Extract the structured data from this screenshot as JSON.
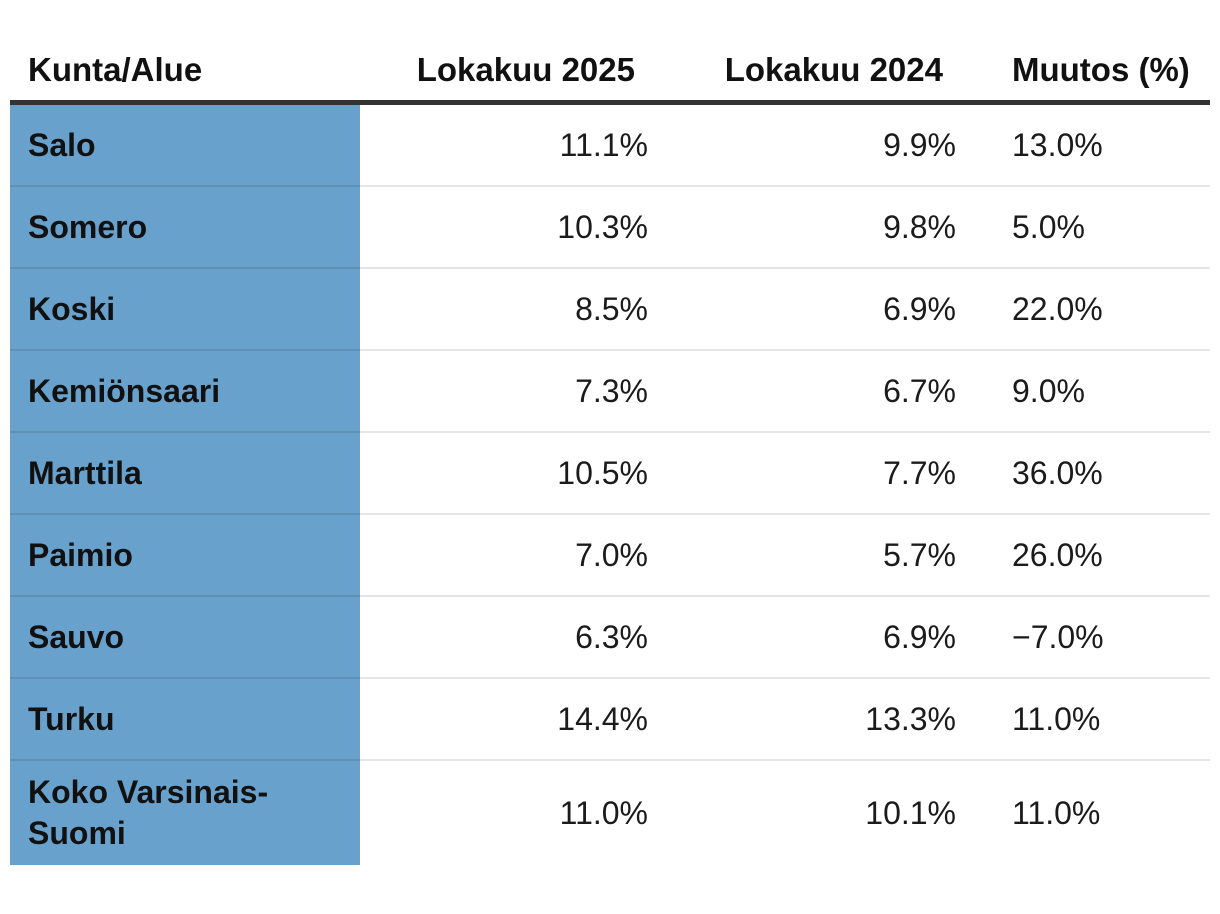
{
  "colors": {
    "row_label_bg": "#69A1CD",
    "header_border": "#333333",
    "row_separator": "#E6E6E6",
    "text": "#1b1b1b",
    "background": "#ffffff"
  },
  "table": {
    "columns": [
      {
        "id": "name",
        "label": "Kunta/Alue",
        "align": "left"
      },
      {
        "id": "oct2025",
        "label": "Lokakuu 2025",
        "align": "right"
      },
      {
        "id": "oct2024",
        "label": "Lokakuu 2024",
        "align": "right"
      },
      {
        "id": "muutos",
        "label": "Muutos (%)",
        "align": "left"
      }
    ],
    "rows": [
      {
        "name": "Salo",
        "oct2025": "11.1%",
        "oct2024": "9.9%",
        "muutos": "13.0%"
      },
      {
        "name": "Somero",
        "oct2025": "10.3%",
        "oct2024": "9.8%",
        "muutos": "5.0%"
      },
      {
        "name": "Koski",
        "oct2025": "8.5%",
        "oct2024": "6.9%",
        "muutos": "22.0%"
      },
      {
        "name": "Kemiönsaari",
        "oct2025": "7.3%",
        "oct2024": "6.7%",
        "muutos": "9.0%"
      },
      {
        "name": "Marttila",
        "oct2025": "10.5%",
        "oct2024": "7.7%",
        "muutos": "36.0%"
      },
      {
        "name": "Paimio",
        "oct2025": "7.0%",
        "oct2024": "5.7%",
        "muutos": "26.0%"
      },
      {
        "name": "Sauvo",
        "oct2025": "6.3%",
        "oct2024": "6.9%",
        "muutos": "−7.0%"
      },
      {
        "name": "Turku",
        "oct2025": "14.4%",
        "oct2024": "13.3%",
        "muutos": "11.0%"
      },
      {
        "name": "Koko Varsinais-Suomi",
        "oct2025": "11.0%",
        "oct2024": "10.1%",
        "muutos": "11.0%"
      }
    ]
  },
  "chart_data": {
    "type": "table",
    "title": "",
    "columns": [
      "Kunta/Alue",
      "Lokakuu 2025",
      "Lokakuu 2024",
      "Muutos (%)"
    ],
    "categories": [
      "Salo",
      "Somero",
      "Koski",
      "Kemiönsaari",
      "Marttila",
      "Paimio",
      "Sauvo",
      "Turku",
      "Koko Varsinais-Suomi"
    ],
    "series": [
      {
        "name": "Lokakuu 2025",
        "unit": "%",
        "values": [
          11.1,
          10.3,
          8.5,
          7.3,
          10.5,
          7.0,
          6.3,
          14.4,
          11.0
        ]
      },
      {
        "name": "Lokakuu 2024",
        "unit": "%",
        "values": [
          9.9,
          9.8,
          6.9,
          6.7,
          7.7,
          5.7,
          6.9,
          13.3,
          10.1
        ]
      },
      {
        "name": "Muutos (%)",
        "unit": "%",
        "values": [
          13.0,
          5.0,
          22.0,
          9.0,
          36.0,
          26.0,
          -7.0,
          11.0,
          11.0
        ]
      }
    ],
    "layout_hints": {
      "first_column_highlight": "#69A1CD",
      "header_rule": "thick dark bottom border",
      "row_separators": "thin light gray",
      "value_alignment": [
        "left",
        "right",
        "right",
        "left"
      ]
    }
  }
}
